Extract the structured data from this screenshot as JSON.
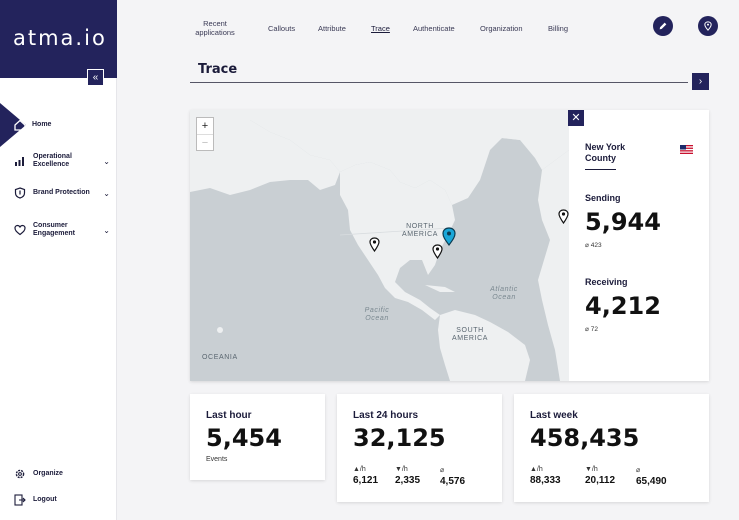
{
  "sidebar": {
    "logo": "atma.io",
    "collapse_glyph": "«",
    "items": [
      {
        "label": "Home",
        "icon": "home-icon"
      },
      {
        "label": "Operational Excellence",
        "icon": "bar-chart-icon"
      },
      {
        "label": "Brand Protection",
        "icon": "shield-icon"
      },
      {
        "label": "Consumer Engagement",
        "icon": "heart-icon"
      }
    ],
    "bottom_items": [
      {
        "label": "Organize",
        "icon": "gear-icon"
      },
      {
        "label": "Logout",
        "icon": "logout-icon"
      }
    ]
  },
  "topnav": {
    "tabs": [
      "Recent applications",
      "Callouts",
      "Attribute",
      "Trace",
      "Authenticate",
      "Organization",
      "Billing"
    ],
    "active": "Trace"
  },
  "page": {
    "title": "Trace"
  },
  "map": {
    "zoom_in": "+",
    "zoom_out": "−",
    "labels": {
      "north_america": "NORTH AMERICA",
      "south_america": "SOUTH AMERICA",
      "pacific": "Pacific Ocean",
      "atlantic": "Atlantic Ocean",
      "oceania": "OCEANIA"
    }
  },
  "panel": {
    "close_glyph": "✕",
    "region": "New York County",
    "sending_label": "Sending",
    "sending_value": "5,944",
    "sending_avg": "⌀ 423",
    "receiving_label": "Receiving",
    "receiving_value": "4,212",
    "receiving_avg": "⌀ 72"
  },
  "cards": {
    "last_hour": {
      "title": "Last hour",
      "value": "5,454",
      "sub": "Events"
    },
    "last_24": {
      "title": "Last 24 hours",
      "value": "32,125",
      "up_label": "▲/h",
      "up_value": "6,121",
      "down_label": "▼/h",
      "down_value": "2,335",
      "avg_label": "⌀",
      "avg_value": "4,576"
    },
    "last_week": {
      "title": "Last week",
      "value": "458,435",
      "up_label": "▲/h",
      "up_value": "88,333",
      "down_label": "▼/h",
      "down_value": "20,112",
      "avg_label": "⌀",
      "avg_value": "65,490"
    }
  },
  "colors": {
    "brand": "#23235c",
    "map_land": "#eef0f1",
    "map_water": "#c9cfd3",
    "pin_active": "#1aa7d8"
  }
}
